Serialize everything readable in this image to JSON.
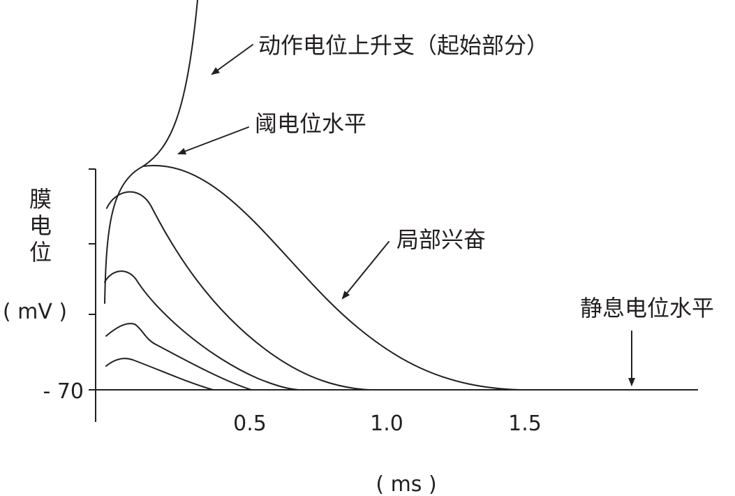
{
  "chart_data": {
    "type": "line",
    "ylabel_chars": [
      "膜",
      "电",
      "位"
    ],
    "yunit": "( mV )",
    "xunit": "( ms )",
    "ytick_label": "- 70",
    "xticks": [
      {
        "value": 0.5,
        "label": "0.5"
      },
      {
        "value": 1.0,
        "label": "1.0"
      },
      {
        "value": 1.5,
        "label": "1.5"
      }
    ],
    "annotations": {
      "action_potential": "动作电位上升支（起始部分）",
      "threshold": "阈电位水平",
      "local_excitation": "局部兴奋",
      "resting": "静息电位水平"
    }
  }
}
